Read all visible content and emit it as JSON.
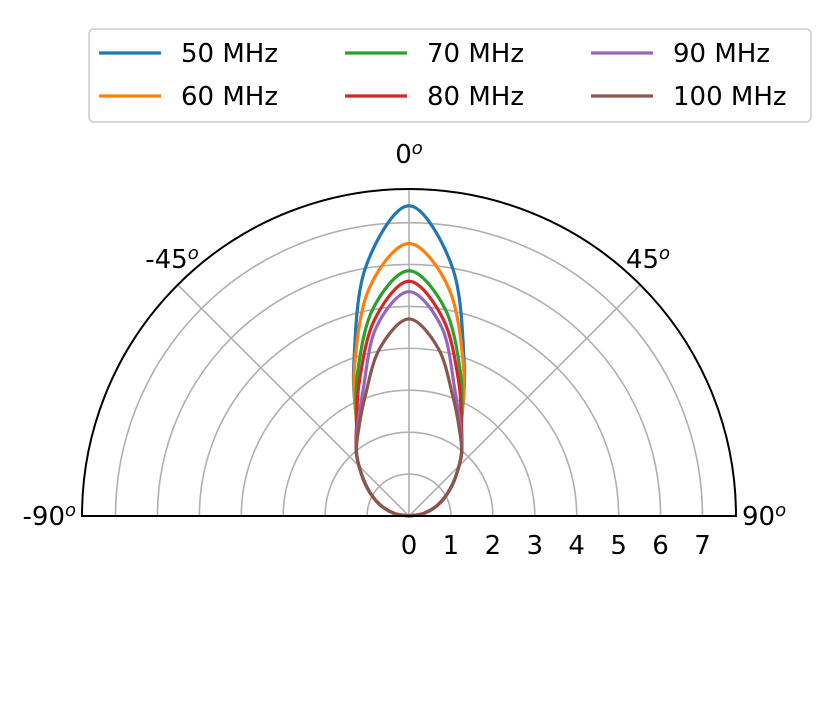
{
  "chart_data": {
    "type": "line",
    "projection": "polar-half",
    "theta_ticks": [
      "-90",
      "-45",
      "0",
      "45",
      "90"
    ],
    "theta_tick_superscript": "o",
    "r_ticks": [
      "0",
      "1",
      "2",
      "3",
      "4",
      "5",
      "6",
      "7"
    ],
    "rlim": [
      0,
      7.8
    ],
    "grid": true,
    "legend_position": "top",
    "series": [
      {
        "name": "50 MHz",
        "color": "#1f77b4",
        "theta_deg": [
          -90,
          -80,
          -70,
          -60,
          -50,
          -40,
          -30,
          -20,
          -10,
          0,
          10,
          20,
          30,
          40,
          50,
          60,
          70,
          80,
          90
        ],
        "r": [
          0,
          0.35,
          0.7,
          1.05,
          1.45,
          1.95,
          2.5,
          3.85,
          6.0,
          7.4,
          6.0,
          3.85,
          2.5,
          1.95,
          1.45,
          1.05,
          0.7,
          0.35,
          0
        ]
      },
      {
        "name": "60 MHz",
        "color": "#ff7f0e",
        "theta_deg": [
          -90,
          -80,
          -70,
          -60,
          -50,
          -40,
          -30,
          -20,
          -10,
          0,
          10,
          20,
          30,
          40,
          50,
          60,
          70,
          80,
          90
        ],
        "r": [
          0,
          0.35,
          0.7,
          1.05,
          1.45,
          1.95,
          2.5,
          3.8,
          5.5,
          6.5,
          5.5,
          3.8,
          2.5,
          1.95,
          1.45,
          1.05,
          0.7,
          0.35,
          0
        ]
      },
      {
        "name": "70 MHz",
        "color": "#2ca02c",
        "theta_deg": [
          -90,
          -80,
          -70,
          -60,
          -50,
          -40,
          -30,
          -20,
          -10,
          0,
          10,
          20,
          30,
          40,
          50,
          60,
          70,
          80,
          90
        ],
        "r": [
          0,
          0.35,
          0.7,
          1.05,
          1.45,
          1.95,
          2.5,
          3.6,
          5.0,
          5.85,
          5.0,
          3.6,
          2.5,
          1.95,
          1.45,
          1.05,
          0.7,
          0.35,
          0
        ]
      },
      {
        "name": "80 MHz",
        "color": "#d62728",
        "theta_deg": [
          -90,
          -80,
          -70,
          -60,
          -50,
          -40,
          -30,
          -20,
          -10,
          0,
          10,
          20,
          30,
          40,
          50,
          60,
          70,
          80,
          90
        ],
        "r": [
          0,
          0.35,
          0.7,
          1.05,
          1.45,
          1.95,
          2.5,
          3.45,
          4.75,
          5.6,
          4.75,
          3.45,
          2.5,
          1.95,
          1.45,
          1.05,
          0.7,
          0.35,
          0
        ]
      },
      {
        "name": "90 MHz",
        "color": "#9467bd",
        "theta_deg": [
          -90,
          -80,
          -70,
          -60,
          -50,
          -40,
          -30,
          -20,
          -10,
          0,
          10,
          20,
          30,
          40,
          50,
          60,
          70,
          80,
          90
        ],
        "r": [
          0,
          0.35,
          0.7,
          1.05,
          1.45,
          1.95,
          2.45,
          3.2,
          4.55,
          5.35,
          4.55,
          3.2,
          2.45,
          1.95,
          1.45,
          1.05,
          0.7,
          0.35,
          0
        ]
      },
      {
        "name": "100 MHz",
        "color": "#8c564b",
        "theta_deg": [
          -90,
          -80,
          -70,
          -60,
          -50,
          -40,
          -30,
          -20,
          -10,
          0,
          10,
          20,
          30,
          40,
          50,
          60,
          70,
          80,
          90
        ],
        "r": [
          0,
          0.35,
          0.7,
          1.05,
          1.45,
          1.95,
          2.4,
          3.05,
          4.05,
          4.7,
          4.05,
          3.05,
          2.4,
          1.95,
          1.45,
          1.05,
          0.7,
          0.35,
          0
        ]
      }
    ]
  }
}
